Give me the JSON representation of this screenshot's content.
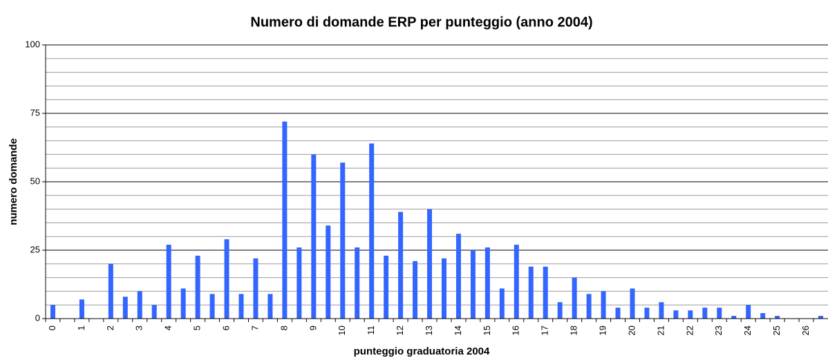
{
  "chart_data": {
    "type": "bar",
    "title": "Numero di domande ERP per punteggio (anno 2004)",
    "x_label": "punteggio graduatoria 2004",
    "y_label": "numero domande",
    "categories": [
      "0",
      null,
      "1",
      null,
      "2",
      null,
      "3",
      null,
      "4",
      null,
      "5",
      null,
      "6",
      null,
      "7",
      null,
      "8",
      null,
      "9",
      null,
      "10",
      null,
      "11",
      null,
      "12",
      null,
      "13",
      null,
      "14",
      null,
      "15",
      null,
      "16",
      null,
      "17",
      null,
      "18",
      null,
      "19",
      null,
      "20",
      null,
      "21",
      null,
      "22",
      null,
      "23",
      null,
      "24",
      null,
      "25",
      null,
      "26",
      null
    ],
    "values": [
      5,
      0,
      7,
      0,
      20,
      8,
      10,
      5,
      27,
      11,
      23,
      9,
      29,
      9,
      22,
      9,
      72,
      26,
      60,
      34,
      57,
      26,
      64,
      23,
      39,
      21,
      40,
      22,
      31,
      25,
      26,
      11,
      27,
      19,
      19,
      6,
      15,
      9,
      10,
      4,
      11,
      4,
      6,
      3,
      3,
      4,
      4,
      1,
      5,
      2,
      1,
      0,
      0,
      1
    ],
    "color": "#3366ff",
    "ylim": [
      0,
      100
    ],
    "yticks": [
      0,
      25,
      50,
      75,
      100
    ],
    "y_minor_ticks": [
      5,
      10,
      15,
      20,
      30,
      35,
      40,
      45,
      55,
      60,
      65,
      70,
      80,
      85,
      90,
      95
    ],
    "grid": true
  }
}
